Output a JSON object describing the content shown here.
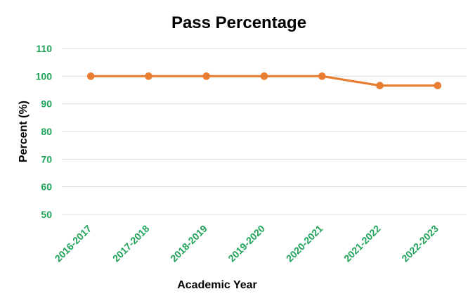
{
  "chart_data": {
    "type": "line",
    "title": "Pass Percentage",
    "xlabel": "Academic Year",
    "ylabel": "Percent (%)",
    "categories": [
      "2016-2017",
      "2017-2018",
      "2018-2019",
      "2019-2020",
      "2020-2021",
      "2021-2022",
      "2022-2023"
    ],
    "series": [
      {
        "values": [
          100,
          100,
          100,
          100,
          100,
          96.6,
          96.6
        ]
      }
    ],
    "ylim": [
      50,
      110
    ],
    "yticks": [
      "110",
      "100",
      "90",
      "80",
      "70",
      "60",
      "50"
    ],
    "grid": true,
    "legend": "none"
  },
  "colors": {
    "line": "#e97d32",
    "tick_text": "#1ea359",
    "grid": "#d9d9d9"
  }
}
